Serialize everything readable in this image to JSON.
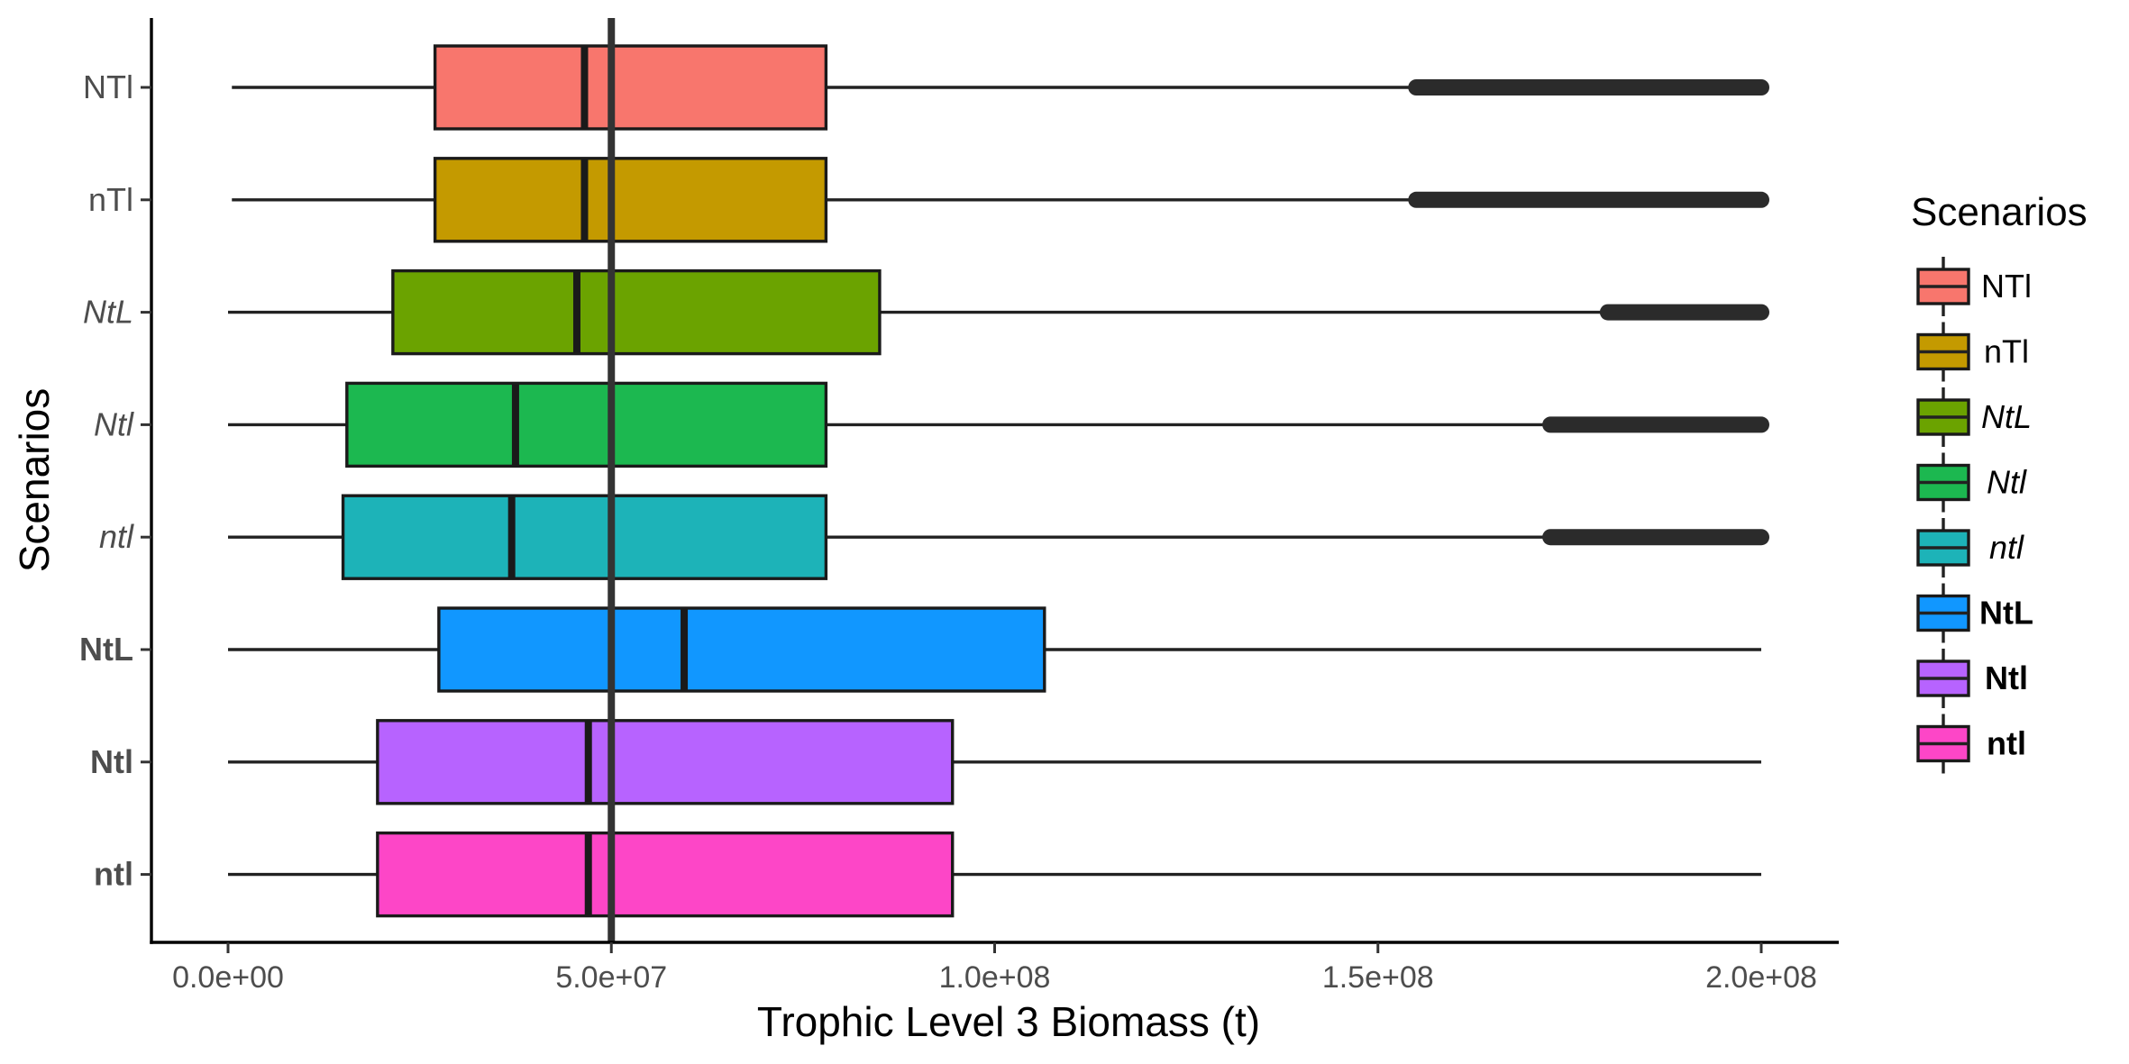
{
  "chart_data": {
    "type": "boxplot",
    "orientation": "horizontal",
    "xlabel": "Trophic Level 3 Biomass (t)",
    "ylabel": "Scenarios",
    "xlim": [
      -10000000,
      210000000
    ],
    "x_ticks": [
      0,
      50000000,
      100000000,
      150000000,
      200000000
    ],
    "x_tick_labels": [
      "0.0e+00",
      "5.0e+07",
      "1.0e+08",
      "1.5e+08",
      "2.0e+08"
    ],
    "reference_line_x": 50000000,
    "grid": false,
    "legend": {
      "title": "Scenarios",
      "position": "right"
    },
    "categories": [
      {
        "label": "NTl",
        "style": "normal",
        "color": "#F8766D",
        "whisker_low": 500000,
        "q1": 27000000,
        "median": 46500000,
        "q3": 78000000,
        "whisker_high": 155000000,
        "outliers_range": [
          155000000,
          200000000
        ]
      },
      {
        "label": "nTl",
        "style": "normal",
        "color": "#C49A00",
        "whisker_low": 500000,
        "q1": 27000000,
        "median": 46500000,
        "q3": 78000000,
        "whisker_high": 155000000,
        "outliers_range": [
          155000000,
          200000000
        ]
      },
      {
        "label": "NtL",
        "style": "italic",
        "color": "#6BA300",
        "whisker_low": 0,
        "q1": 21500000,
        "median": 45500000,
        "q3": 85000000,
        "whisker_high": 180000000,
        "outliers_range": [
          180000000,
          200000000
        ]
      },
      {
        "label": "Ntl",
        "style": "italic",
        "color": "#1CB850",
        "whisker_low": 0,
        "q1": 15500000,
        "median": 37500000,
        "q3": 78000000,
        "whisker_high": 172500000,
        "outliers_range": [
          172500000,
          200000000
        ]
      },
      {
        "label": "ntl",
        "style": "italic",
        "color": "#1DB3B8",
        "whisker_low": 0,
        "q1": 15000000,
        "median": 37000000,
        "q3": 78000000,
        "whisker_high": 172500000,
        "outliers_range": [
          172500000,
          200000000
        ]
      },
      {
        "label": "NtL",
        "style": "bold",
        "color": "#1197FF",
        "whisker_low": 0,
        "q1": 27500000,
        "median": 59500000,
        "q3": 106500000,
        "whisker_high": 200000000,
        "outliers_range": null
      },
      {
        "label": "Ntl",
        "style": "bold",
        "color": "#B763FF",
        "whisker_low": 0,
        "q1": 19500000,
        "median": 47000000,
        "q3": 94500000,
        "whisker_high": 200000000,
        "outliers_range": null
      },
      {
        "label": "ntl",
        "style": "bold",
        "color": "#FD46C7",
        "whisker_low": 0,
        "q1": 19500000,
        "median": 47000000,
        "q3": 94500000,
        "whisker_high": 200000000,
        "outliers_range": null
      }
    ]
  }
}
